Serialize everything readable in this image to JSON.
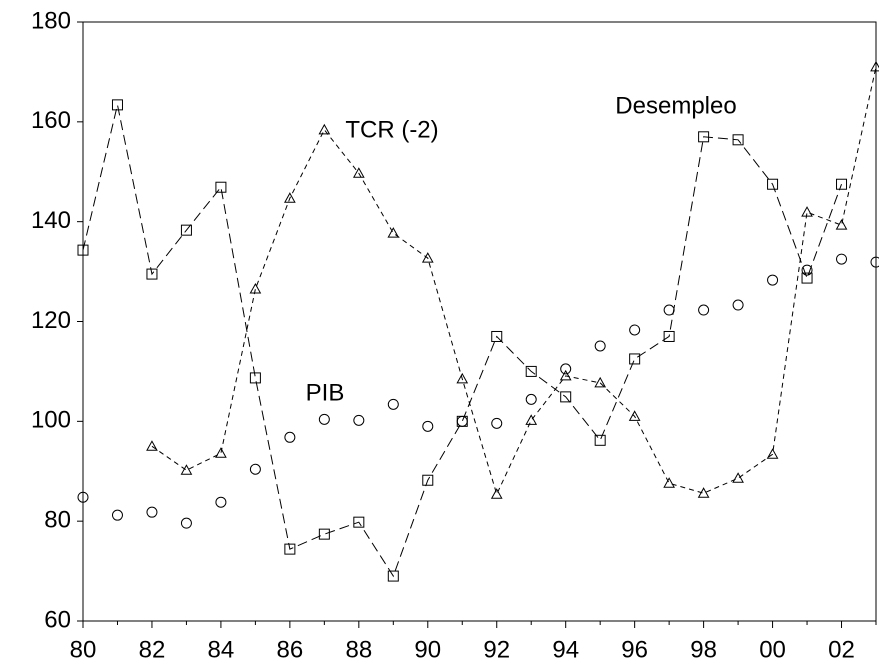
{
  "chart_data": {
    "type": "line",
    "categories": [
      "80",
      null,
      "82",
      null,
      "84",
      null,
      "86",
      null,
      "88",
      null,
      "90",
      null,
      "92",
      null,
      "94",
      null,
      "96",
      null,
      "98",
      null,
      "00",
      null,
      "02",
      null
    ],
    "ylim": [
      60,
      180
    ],
    "yticks": [
      60,
      80,
      100,
      120,
      140,
      160,
      180
    ],
    "series": [
      {
        "name": "Desempleo",
        "color": "#000000",
        "marker": "square",
        "dash": "10,5",
        "values": [
          134.3,
          163.4,
          129.5,
          138.3,
          146.9,
          108.7,
          74.4,
          77.4,
          79.8,
          69,
          88.2,
          100,
          117,
          110,
          104.9,
          96.2,
          112.5,
          117,
          157,
          156.4,
          147.5,
          128.7,
          147.5,
          null
        ]
      },
      {
        "name": "TCR (-2)",
        "color": "#000000",
        "marker": "triangle",
        "dash": "5,4",
        "values": [
          null,
          null,
          95,
          90.2,
          93.6,
          126.5,
          144.7,
          158.4,
          149.7,
          137.7,
          132.7,
          108.5,
          85.4,
          100.2,
          109.1,
          107.7,
          101,
          87.6,
          85.6,
          88.6,
          93.4,
          141.9,
          139.3,
          171
        ]
      },
      {
        "name": "PIB",
        "color": "#000000",
        "marker": "circle",
        "dash": "none",
        "values": [
          84.8,
          81.2,
          81.8,
          79.6,
          83.8,
          90.4,
          96.8,
          100.4,
          100.2,
          103.4,
          99,
          100,
          99.6,
          104.4,
          110.5,
          115.1,
          118.3,
          122.3,
          122.3,
          123.3,
          128.3,
          130.3,
          132.5,
          131.9
        ]
      }
    ]
  }
}
